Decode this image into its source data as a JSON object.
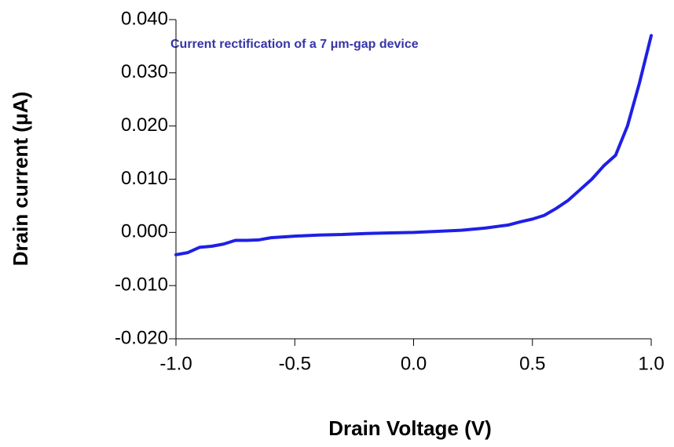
{
  "chart_data": {
    "type": "line",
    "title": "Current rectification of a 7 μm-gap device",
    "x_label": "Drain Voltage (V)",
    "y_label": "Drain current (μA)",
    "x": [
      -1.0,
      -0.95,
      -0.9,
      -0.85,
      -0.8,
      -0.75,
      -0.7,
      -0.65,
      -0.6,
      -0.5,
      -0.4,
      -0.3,
      -0.2,
      -0.1,
      0.0,
      0.1,
      0.2,
      0.3,
      0.4,
      0.45,
      0.5,
      0.55,
      0.6,
      0.65,
      0.7,
      0.75,
      0.8,
      0.85,
      0.9,
      0.95,
      1.0
    ],
    "series": [
      {
        "color": "#1f1fe6",
        "values": [
          -0.0042,
          -0.0038,
          -0.0028,
          -0.0026,
          -0.0022,
          -0.0015,
          -0.0015,
          -0.0014,
          -0.001,
          -0.0007,
          -0.0005,
          -0.0004,
          -0.0002,
          -0.0001,
          0.0,
          0.0002,
          0.0004,
          0.0008,
          0.0014,
          0.002,
          0.0025,
          0.0032,
          0.0045,
          0.006,
          0.008,
          0.01,
          0.0125,
          0.0145,
          0.02,
          0.028,
          0.037
        ]
      }
    ],
    "xlim": [
      -1.0,
      1.0
    ],
    "xticks": [
      {
        "value": -1,
        "label": "-1.0"
      },
      {
        "value": -0.5,
        "label": "-0.5"
      },
      {
        "value": 0,
        "label": "0.0"
      },
      {
        "value": 0.5,
        "label": "0.5"
      },
      {
        "value": 1,
        "label": "1.0"
      }
    ],
    "ylim": [
      -0.02,
      0.04
    ],
    "yticks": [
      {
        "value": -0.02,
        "label": "-0.020"
      },
      {
        "value": -0.01,
        "label": "-0.010"
      },
      {
        "value": 0,
        "label": "0.000"
      },
      {
        "value": 0.01,
        "label": "0.010"
      },
      {
        "value": 0.02,
        "label": "0.020"
      },
      {
        "value": 0.03,
        "label": "0.030"
      },
      {
        "value": 0.04,
        "label": "0.040"
      }
    ],
    "grid": false
  }
}
